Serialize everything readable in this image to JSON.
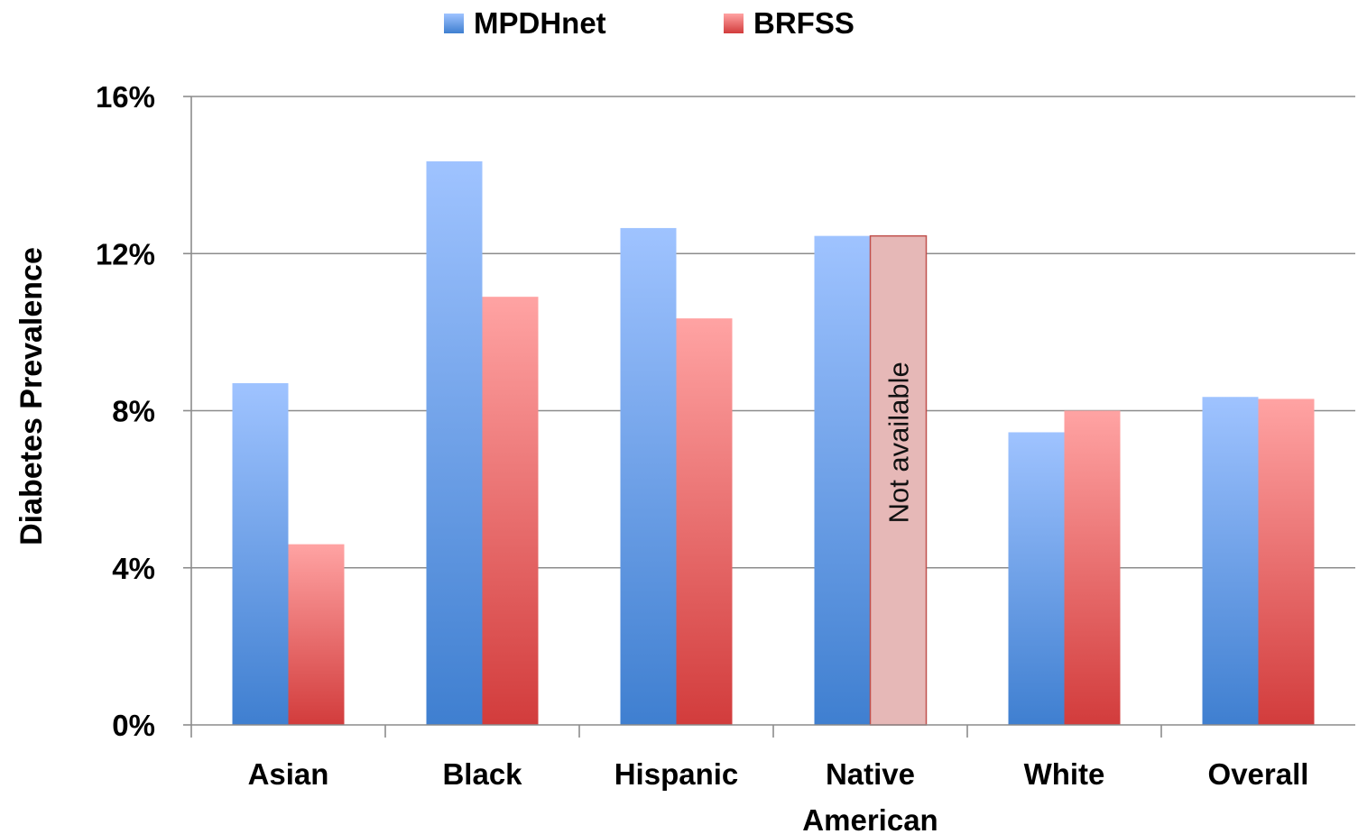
{
  "chart_data": {
    "type": "bar",
    "title": "",
    "xlabel": "",
    "ylabel": "Diabetes Prevalence",
    "ylim": [
      0,
      16
    ],
    "yticks": [
      "0%",
      "4%",
      "8%",
      "12%",
      "16%"
    ],
    "grid": true,
    "legend_position": "top",
    "categories": [
      "Asian",
      "Black",
      "Hispanic",
      "Native\nAmerican",
      "White",
      "Overall"
    ],
    "series": [
      {
        "name": "MPDHnet",
        "color": "#4a86d4",
        "values": [
          8.7,
          14.35,
          12.65,
          12.45,
          7.45,
          8.35
        ]
      },
      {
        "name": "BRFSS",
        "color": "#d64545",
        "values": [
          4.6,
          10.9,
          10.35,
          null,
          8.0,
          8.3
        ]
      }
    ],
    "annotations": [
      {
        "category": "Native\nAmerican",
        "series": "BRFSS",
        "text": "Not available"
      }
    ]
  }
}
